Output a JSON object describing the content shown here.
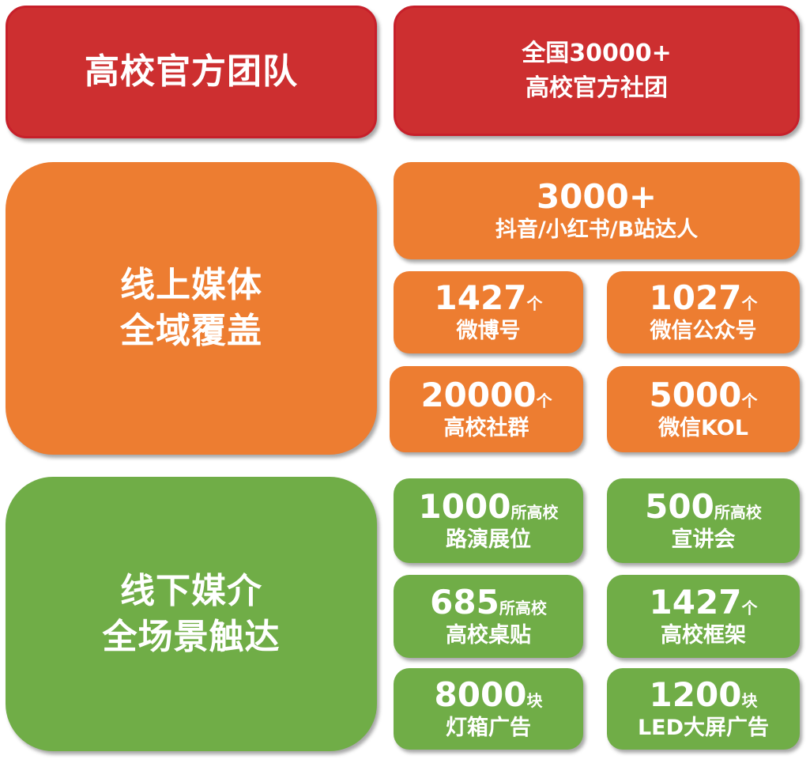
{
  "colors": {
    "red": "#CD2F30",
    "orange": "#ED7D31",
    "green": "#70AD47"
  },
  "team": {
    "title": "高校官方团队",
    "stat_line1": "全国30000+",
    "stat_line2": "高校官方社团"
  },
  "online": {
    "title_line1": "线上媒体",
    "title_line2": "全域覆盖",
    "items": [
      {
        "value": "3000+",
        "unit": "",
        "label": "抖音/小红书/B站达人"
      },
      {
        "value": "1427",
        "unit": "个",
        "label": "微博号"
      },
      {
        "value": "1027",
        "unit": "个",
        "label": "微信公众号"
      },
      {
        "value": "20000",
        "unit": "个",
        "label": "高校社群"
      },
      {
        "value": "5000",
        "unit": "个",
        "label": "微信KOL"
      }
    ]
  },
  "offline": {
    "title_line1": "线下媒介",
    "title_line2": "全场景触达",
    "items": [
      {
        "value": "1000",
        "unit": "所高校",
        "label": "路演展位"
      },
      {
        "value": "500",
        "unit": "所高校",
        "label": "宣讲会"
      },
      {
        "value": "685",
        "unit": "所高校",
        "label": "高校桌贴"
      },
      {
        "value": "1427",
        "unit": "个",
        "label": "高校框架"
      },
      {
        "value": "8000",
        "unit": "块",
        "label": "灯箱广告"
      },
      {
        "value": "1200",
        "unit": "块",
        "label": "LED大屏广告"
      }
    ]
  }
}
